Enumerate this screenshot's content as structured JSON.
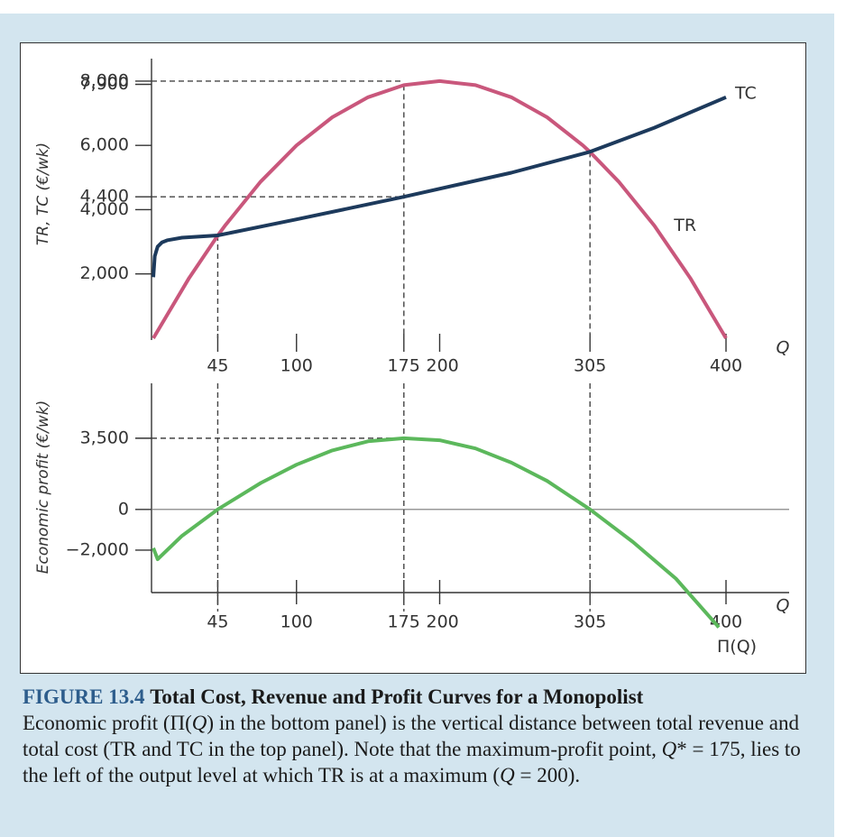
{
  "chart_data": [
    {
      "type": "line",
      "y_label": "TR, TC (€/wk)",
      "x_label": "Q",
      "xlim": [
        0,
        440
      ],
      "ylim": [
        0,
        8700
      ],
      "xticks": [
        45,
        100,
        175,
        200,
        305,
        400
      ],
      "yticks": [
        {
          "value": 2000,
          "label": "2,000"
        },
        {
          "value": 4000,
          "label": "4,000"
        },
        {
          "value": 4400,
          "label": "4,400"
        },
        {
          "value": 6000,
          "label": "6,000"
        },
        {
          "value": 7900,
          "label": "7,900"
        },
        {
          "value": 8000,
          "label": "8,000"
        }
      ],
      "series": [
        {
          "name": "TR",
          "color": "#c9577c",
          "x": [
            0,
            25,
            45,
            50,
            75,
            100,
            125,
            150,
            175,
            200,
            225,
            250,
            275,
            300,
            305,
            325,
            350,
            375,
            400
          ],
          "values": [
            0,
            1875,
            3195,
            3500,
            4875,
            6000,
            6875,
            7500,
            7875,
            8000,
            7875,
            7500,
            6875,
            6000,
            5795,
            4875,
            3500,
            1875,
            0
          ]
        },
        {
          "name": "TC",
          "color": "#1d3a5c",
          "x": [
            0,
            1,
            3,
            6,
            10,
            20,
            45,
            100,
            175,
            250,
            305,
            350,
            400
          ],
          "values": [
            1900,
            2550,
            2850,
            2980,
            3050,
            3130,
            3200,
            3700,
            4400,
            5150,
            5800,
            6550,
            7500
          ]
        }
      ],
      "h_guides": [
        {
          "y": 8000,
          "x": 175
        },
        {
          "y": 4400,
          "x": 175
        }
      ],
      "v_guides": [
        {
          "x": 45,
          "y": 3200
        },
        {
          "x": 175,
          "y": 7875
        },
        {
          "x": 305,
          "y": 5800
        }
      ]
    },
    {
      "type": "line",
      "y_label": "Economic profit (€/wk)",
      "x_label": "Q",
      "xlim": [
        0,
        440
      ],
      "ylim": [
        -4000,
        6200
      ],
      "xticks": [
        45,
        100,
        175,
        200,
        305,
        400
      ],
      "yticks": [
        {
          "value": -2000,
          "label": "−2,000"
        },
        0,
        {
          "value": 3500,
          "label": "3,500"
        }
      ],
      "zero_line": true,
      "series": [
        {
          "name": "Π(Q)",
          "color": "#5cb85c",
          "x": [
            0,
            3,
            20,
            45,
            75,
            100,
            125,
            150,
            175,
            200,
            225,
            250,
            275,
            305,
            335,
            365,
            395
          ],
          "values": [
            -1900,
            -2450,
            -1300,
            0,
            1300,
            2200,
            2900,
            3350,
            3500,
            3400,
            3000,
            2300,
            1400,
            0,
            -1600,
            -3400,
            -5800
          ]
        }
      ],
      "h_guides": [
        {
          "y": 3500,
          "x": 175
        }
      ],
      "v_guides": [
        {
          "x": 45
        },
        {
          "x": 175
        },
        {
          "x": 305
        }
      ]
    }
  ],
  "caption": {
    "figure_label": "FIGURE 13.4",
    "title": "Total Cost, Revenue and Profit Curves for a Monopolist",
    "body": [
      {
        "text": "Economic profit (Π(",
        "italic": false
      },
      {
        "text": "Q",
        "italic": true
      },
      {
        "text": ") in the bottom panel) is the vertical distance between total revenue and total cost (TR and TC in the top panel). Note that the maximum-profit point, ",
        "italic": false
      },
      {
        "text": "Q",
        "italic": true
      },
      {
        "text": "* = 175, lies to the left of the output level at which TR is at a maximum (",
        "italic": false
      },
      {
        "text": "Q",
        "italic": true
      },
      {
        "text": " = 200).",
        "italic": false
      }
    ]
  }
}
